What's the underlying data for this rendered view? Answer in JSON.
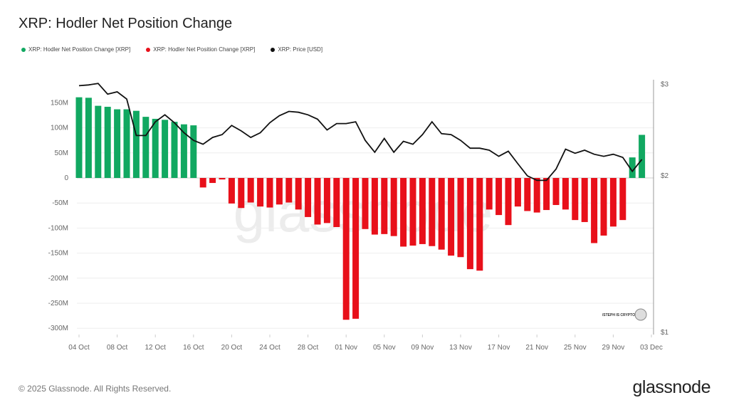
{
  "title": "XRP: Hodler Net Position Change",
  "legend": [
    {
      "label": "XRP: Hodler Net Position Change [XRP]",
      "color": "#11a861"
    },
    {
      "label": "XRP: Hodler Net Position Change [XRP]",
      "color": "#e8101a"
    },
    {
      "label": "XRP: Price [USD]",
      "color": "#111111"
    }
  ],
  "footer": "© 2025 Glassnode. All Rights Reserved.",
  "logo": "glassnode",
  "watermark": "glassnode",
  "credit": "/STEPH IS CRYPTO",
  "chart_data": {
    "type": "bar",
    "title": "XRP: Hodler Net Position Change",
    "x_start": "2025-10-04",
    "x_ticks": [
      "04 Oct",
      "08 Oct",
      "12 Oct",
      "16 Oct",
      "20 Oct",
      "24 Oct",
      "28 Oct",
      "01 Nov",
      "05 Nov",
      "09 Nov",
      "13 Nov",
      "17 Nov",
      "21 Nov",
      "25 Nov",
      "29 Nov",
      "03 Dec"
    ],
    "y_left_ticks": [
      "150M",
      "100M",
      "50M",
      "0",
      "-50M",
      "-100M",
      "-150M",
      "-200M",
      "-250M",
      "-300M"
    ],
    "y_left_range": [
      -300000000,
      150000000
    ],
    "y_right_ticks": [
      "$3",
      "$2",
      "$1"
    ],
    "y_right_scale": "log",
    "y_right_range": [
      1,
      3
    ],
    "grid": true,
    "legend_position": "top-left",
    "positive_color": "#11a861",
    "negative_color": "#e8101a",
    "price_color": "#111111",
    "series": [
      {
        "name": "XRP: Hodler Net Position Change [XRP]",
        "unit": "M",
        "values": [
          161,
          160,
          144,
          142,
          137,
          137,
          134,
          122,
          118,
          116,
          112,
          107,
          105,
          -19,
          -10,
          -3,
          -51,
          -60,
          -49,
          -57,
          -59,
          -53,
          -49,
          -63,
          -78,
          -93,
          -90,
          -98,
          -283,
          -281,
          -102,
          -113,
          -112,
          -116,
          -137,
          -135,
          -132,
          -136,
          -143,
          -155,
          -158,
          -182,
          -185,
          -63,
          -74,
          -94,
          -57,
          -66,
          -69,
          -64,
          -54,
          -63,
          -84,
          -88,
          -130,
          -115,
          -97,
          -84,
          41,
          86
        ]
      },
      {
        "name": "XRP: Price [USD]",
        "values": [
          2.98,
          2.99,
          3.01,
          2.87,
          2.9,
          2.81,
          2.39,
          2.39,
          2.54,
          2.62,
          2.53,
          2.42,
          2.34,
          2.3,
          2.37,
          2.4,
          2.5,
          2.44,
          2.37,
          2.42,
          2.53,
          2.61,
          2.66,
          2.65,
          2.62,
          2.57,
          2.45,
          2.52,
          2.52,
          2.54,
          2.34,
          2.22,
          2.36,
          2.22,
          2.33,
          2.3,
          2.4,
          2.54,
          2.41,
          2.4,
          2.34,
          2.26,
          2.26,
          2.24,
          2.18,
          2.23,
          2.11,
          2.0,
          1.96,
          1.96,
          2.06,
          2.25,
          2.21,
          2.24,
          2.2,
          2.18,
          2.2,
          2.17,
          2.04,
          2.15
        ]
      }
    ]
  }
}
